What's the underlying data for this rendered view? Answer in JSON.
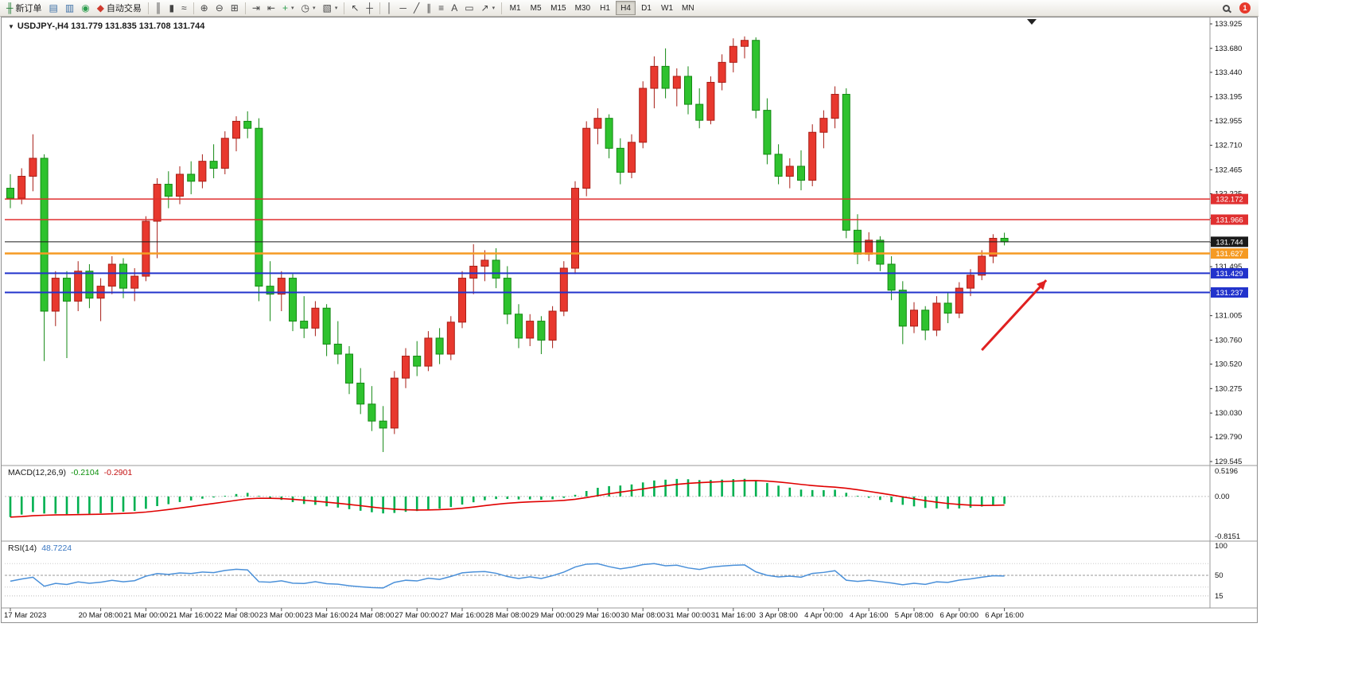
{
  "app": {
    "toolbar": {
      "new_order": "新订单",
      "auto_trading": "自动交易",
      "notification_badge": "1",
      "active_timeframe": "H4",
      "timeframes": [
        "M1",
        "M5",
        "M15",
        "M30",
        "H1",
        "H4",
        "D1",
        "W1",
        "MN"
      ],
      "items": [
        {
          "name": "new-order-button",
          "glyph": "╫",
          "glyph_color": "#1f7a33",
          "label": "新订单"
        },
        {
          "name": "market-watch-button",
          "gl yph_unused": "",
          "glyph": "▤",
          "glyph_color": "#3a6ea5"
        },
        {
          "name": "data-window-button",
          "glyph": "▥",
          "glyph_color": "#3a6ea5"
        },
        {
          "name": "navigator-button",
          "glyph": "◉",
          "glyph_color": "#2e9e4f"
        },
        {
          "name": "auto-trading-button",
          "glyph": "◆",
          "glyph_color": "#cf3a2e",
          "label": "自动交易"
        },
        {
          "type": "sep"
        },
        {
          "name": "bar-chart-button",
          "glyph": "║",
          "glyph_color": "#444"
        },
        {
          "name": "candlestick-chart-button",
          "glyph": "▮",
          "glyph_color": "#444"
        },
        {
          "name": "line-chart-button",
          "glyph": "≈",
          "glyph_color": "#444"
        },
        {
          "type": "sep"
        },
        {
          "name": "zoom-in-button",
          "glyph": "⊕",
          "glyph_color": "#444"
        },
        {
          "name": "zoom-out-button",
          "glyph": "⊖",
          "glyph_color": "#444"
        },
        {
          "name": "tile-windows-button",
          "glyph": "⊞",
          "glyph_color": "#444"
        },
        {
          "type": "sep"
        },
        {
          "name": "auto-scroll-button",
          "glyph": "⇥",
          "glyph_color": "#444"
        },
        {
          "name": "chart-shift-button",
          "glyph": "⇤",
          "glyph_color": "#444"
        },
        {
          "name": "indicators-button",
          "glyph": "+",
          "glyph_color": "#2e9e4f",
          "dropdown": true
        },
        {
          "name": "periods-button",
          "glyph": "◷",
          "glyph_color": "#444",
          "dropdown": true
        },
        {
          "name": "templates-button",
          "glyph": "▧",
          "glyph_color": "#444",
          "dropdown": true
        },
        {
          "type": "sep"
        },
        {
          "name": "cursor-button",
          "glyph": "↖",
          "glyph_color": "#444"
        },
        {
          "name": "crosshair-button",
          "glyph": "┼",
          "glyph_color": "#444"
        },
        {
          "type": "sep"
        },
        {
          "name": "vertical-line-button",
          "glyph": "│",
          "glyph_color": "#444"
        },
        {
          "name": "horizontal-line-button",
          "glyph": "─",
          "glyph_color": "#444"
        },
        {
          "name": "trendline-button",
          "glyph": "╱",
          "glyph_color": "#444"
        },
        {
          "name": "channel-button",
          "glyph": "∥",
          "glyph_color": "#444"
        },
        {
          "name": "fibonacci-button",
          "glyph": "≡",
          "glyph_color": "#444"
        },
        {
          "name": "text-button",
          "glyph": "A",
          "glyph_color": "#444"
        },
        {
          "name": "text-label-button",
          "glyph": "▭",
          "glyph_color": "#444"
        },
        {
          "name": "arrows-tool-button",
          "glyph": "↗",
          "glyph_color": "#444",
          "dropdown": true
        },
        {
          "type": "sep"
        }
      ]
    }
  },
  "chart": {
    "collapse_glyph": "▼",
    "title": "USDJPY-,H4 131.779 131.835 131.708 131.744",
    "symbol": "USDJPY-",
    "period": "H4"
  },
  "macd_panel": {
    "label": "MACD(12,26,9)",
    "main_value": "-0.2104",
    "signal_value": "-0.2901",
    "axis": [
      "0.5196",
      "0.00",
      "-0.8151"
    ]
  },
  "rsi_panel": {
    "label": "RSI(14)",
    "value": "48.7224",
    "axis": [
      "100",
      "50",
      "15"
    ]
  },
  "chart_data": {
    "type": "candlestick",
    "symbol": "USDJPY-",
    "timeframe": "H4",
    "last_ohlc": [
      131.779,
      131.835,
      131.708,
      131.744
    ],
    "price_range": [
      129.545,
      133.925
    ],
    "price_axis_ticks": [
      133.925,
      133.68,
      133.44,
      133.195,
      132.955,
      132.71,
      132.465,
      132.225,
      131.98,
      131.74,
      131.495,
      131.255,
      131.005,
      130.76,
      130.52,
      130.275,
      130.03,
      129.79,
      129.545
    ],
    "candles": [
      [
        132.28,
        132.42,
        132.08,
        132.18
      ],
      [
        132.18,
        132.48,
        132.12,
        132.4
      ],
      [
        132.4,
        132.82,
        132.25,
        132.58
      ],
      [
        132.58,
        132.62,
        130.55,
        131.05
      ],
      [
        131.05,
        131.45,
        130.9,
        131.38
      ],
      [
        131.38,
        131.45,
        130.58,
        131.15
      ],
      [
        131.15,
        131.55,
        131.05,
        131.45
      ],
      [
        131.45,
        131.52,
        131.08,
        131.18
      ],
      [
        131.18,
        131.38,
        130.95,
        131.3
      ],
      [
        131.3,
        131.6,
        131.22,
        131.52
      ],
      [
        131.52,
        131.58,
        131.18,
        131.28
      ],
      [
        131.28,
        131.48,
        131.15,
        131.4
      ],
      [
        131.4,
        132.0,
        131.35,
        131.95
      ],
      [
        131.95,
        132.38,
        131.58,
        132.32
      ],
      [
        132.32,
        132.45,
        132.08,
        132.2
      ],
      [
        132.2,
        132.5,
        132.12,
        132.42
      ],
      [
        132.42,
        132.55,
        132.22,
        132.35
      ],
      [
        132.35,
        132.62,
        132.28,
        132.55
      ],
      [
        132.55,
        132.72,
        132.38,
        132.48
      ],
      [
        132.48,
        132.85,
        132.42,
        132.78
      ],
      [
        132.78,
        133.0,
        132.65,
        132.95
      ],
      [
        132.95,
        133.05,
        132.78,
        132.88
      ],
      [
        132.88,
        132.98,
        131.15,
        131.3
      ],
      [
        131.3,
        131.55,
        130.95,
        131.22
      ],
      [
        131.22,
        131.45,
        131.05,
        131.38
      ],
      [
        131.38,
        131.42,
        130.85,
        130.95
      ],
      [
        130.95,
        131.2,
        130.78,
        130.88
      ],
      [
        130.88,
        131.15,
        130.8,
        131.08
      ],
      [
        131.08,
        131.12,
        130.6,
        130.72
      ],
      [
        130.72,
        130.95,
        130.52,
        130.62
      ],
      [
        130.62,
        130.7,
        130.22,
        130.33
      ],
      [
        130.33,
        130.48,
        130.02,
        130.12
      ],
      [
        130.12,
        130.3,
        129.85,
        129.95
      ],
      [
        129.95,
        130.1,
        129.64,
        129.88
      ],
      [
        129.88,
        130.45,
        129.82,
        130.38
      ],
      [
        130.38,
        130.68,
        130.28,
        130.6
      ],
      [
        130.6,
        130.75,
        130.4,
        130.5
      ],
      [
        130.5,
        130.85,
        130.45,
        130.78
      ],
      [
        130.78,
        130.88,
        130.52,
        130.62
      ],
      [
        130.62,
        131.0,
        130.56,
        130.94
      ],
      [
        130.94,
        131.45,
        130.88,
        131.38
      ],
      [
        131.38,
        131.72,
        131.22,
        131.5
      ],
      [
        131.5,
        131.66,
        131.35,
        131.56
      ],
      [
        131.56,
        131.68,
        131.28,
        131.38
      ],
      [
        131.38,
        131.5,
        130.92,
        131.02
      ],
      [
        131.02,
        131.12,
        130.68,
        130.78
      ],
      [
        130.78,
        131.02,
        130.7,
        130.95
      ],
      [
        130.95,
        131.0,
        130.62,
        130.76
      ],
      [
        130.76,
        131.1,
        130.68,
        131.05
      ],
      [
        131.05,
        131.55,
        131.0,
        131.48
      ],
      [
        131.48,
        132.35,
        131.42,
        132.28
      ],
      [
        132.28,
        132.95,
        132.2,
        132.88
      ],
      [
        132.88,
        133.08,
        132.72,
        132.98
      ],
      [
        132.98,
        133.02,
        132.58,
        132.68
      ],
      [
        132.68,
        132.78,
        132.32,
        132.44
      ],
      [
        132.44,
        132.82,
        132.38,
        132.74
      ],
      [
        132.74,
        133.35,
        132.68,
        133.28
      ],
      [
        133.28,
        133.6,
        133.08,
        133.5
      ],
      [
        133.5,
        133.68,
        133.18,
        133.28
      ],
      [
        133.28,
        133.48,
        133.1,
        133.4
      ],
      [
        133.4,
        133.5,
        133.02,
        133.12
      ],
      [
        133.12,
        133.28,
        132.88,
        132.96
      ],
      [
        132.96,
        133.4,
        132.92,
        133.34
      ],
      [
        133.34,
        133.62,
        133.26,
        133.54
      ],
      [
        133.54,
        133.78,
        133.44,
        133.7
      ],
      [
        133.7,
        133.8,
        133.58,
        133.76
      ],
      [
        133.76,
        133.79,
        132.98,
        133.06
      ],
      [
        133.06,
        133.18,
        132.52,
        132.62
      ],
      [
        132.62,
        132.72,
        132.32,
        132.4
      ],
      [
        132.4,
        132.58,
        132.28,
        132.5
      ],
      [
        132.5,
        132.66,
        132.26,
        132.36
      ],
      [
        132.36,
        132.92,
        132.3,
        132.84
      ],
      [
        132.84,
        133.06,
        132.68,
        132.98
      ],
      [
        132.98,
        133.3,
        132.88,
        133.22
      ],
      [
        133.22,
        133.28,
        131.78,
        131.86
      ],
      [
        131.86,
        132.02,
        131.52,
        131.62
      ],
      [
        131.62,
        131.84,
        131.55,
        131.76
      ],
      [
        131.76,
        131.8,
        131.45,
        131.52
      ],
      [
        131.52,
        131.6,
        131.16,
        131.26
      ],
      [
        131.26,
        131.35,
        130.72,
        130.9
      ],
      [
        130.9,
        131.14,
        130.83,
        131.06
      ],
      [
        131.06,
        131.1,
        130.76,
        130.86
      ],
      [
        130.86,
        131.2,
        130.8,
        131.13
      ],
      [
        131.13,
        131.24,
        130.93,
        131.03
      ],
      [
        131.03,
        131.34,
        130.98,
        131.28
      ],
      [
        131.28,
        131.47,
        131.2,
        131.41
      ],
      [
        131.41,
        131.66,
        131.36,
        131.6
      ],
      [
        131.6,
        131.82,
        131.53,
        131.779
      ],
      [
        131.779,
        131.835,
        131.708,
        131.744
      ]
    ],
    "time_labels": [
      [
        0,
        "17 Mar 2023"
      ],
      [
        8,
        "20 Mar 08:00"
      ],
      [
        12,
        "21 Mar 00:00"
      ],
      [
        16,
        "21 Mar 16:00"
      ],
      [
        20,
        "22 Mar 08:00"
      ],
      [
        24,
        "23 Mar 00:00"
      ],
      [
        28,
        "23 Mar 16:00"
      ],
      [
        32,
        "24 Mar 08:00"
      ],
      [
        36,
        "27 Mar 00:00"
      ],
      [
        40,
        "27 Mar 16:00"
      ],
      [
        44,
        "28 Mar 08:00"
      ],
      [
        48,
        "29 Mar 00:00"
      ],
      [
        52,
        "29 Mar 16:00"
      ],
      [
        56,
        "30 Mar 08:00"
      ],
      [
        60,
        "31 Mar 00:00"
      ],
      [
        64,
        "31 Mar 16:00"
      ],
      [
        68,
        "3 Apr 08:00"
      ],
      [
        72,
        "4 Apr 00:00"
      ],
      [
        76,
        "4 Apr 16:00"
      ],
      [
        80,
        "5 Apr 08:00"
      ],
      [
        84,
        "6 Apr 00:00"
      ],
      [
        88,
        "6 Apr 16:00"
      ]
    ],
    "hlines": [
      {
        "price": 132.172,
        "color": "#e03030",
        "label": "132.172",
        "width": 1.5
      },
      {
        "price": 131.966,
        "color": "#e03030",
        "label": "131.966",
        "width": 1.5
      },
      {
        "price": 131.744,
        "color": "#1a1a1a",
        "label": "131.744",
        "width": 1,
        "role": "current-price"
      },
      {
        "price": 131.627,
        "color": "#f59a23",
        "label": "131.627",
        "width": 2.5
      },
      {
        "price": 131.429,
        "color": "#2233cc",
        "label": "131.429",
        "width": 2
      },
      {
        "price": 131.237,
        "color": "#2233cc",
        "label": "131.237",
        "width": 2
      }
    ],
    "arrow": {
      "from_index": 86,
      "from_price": 130.66,
      "to_index": 91.7,
      "to_price": 131.36,
      "color": "#e02020"
    },
    "indicators": {
      "macd": {
        "fast": 12,
        "slow": 26,
        "signal": 9,
        "main": -0.2104,
        "signal_value": -0.2901
      },
      "rsi": {
        "period": 14,
        "value": 48.7224
      }
    },
    "colors": {
      "bull": "#e8382e",
      "bull_stroke": "#a81e16",
      "bear": "#2ec22e",
      "bear_stroke": "#138913",
      "macd_hist": "#00b050",
      "macd_signal": "#e00000",
      "rsi_line": "#4a90d9",
      "background": "#ffffff",
      "axis_text": "#111111",
      "separator": "#9a9a9a"
    }
  }
}
